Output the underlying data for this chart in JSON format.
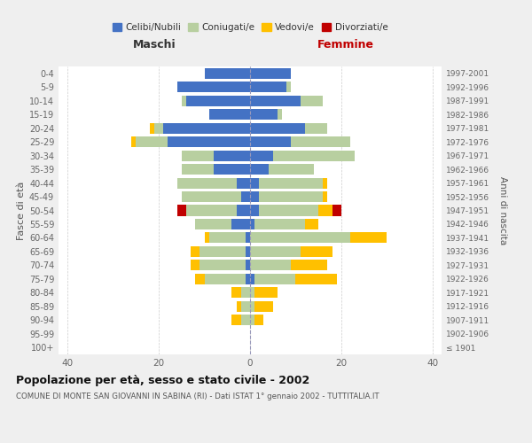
{
  "age_groups": [
    "100+",
    "95-99",
    "90-94",
    "85-89",
    "80-84",
    "75-79",
    "70-74",
    "65-69",
    "60-64",
    "55-59",
    "50-54",
    "45-49",
    "40-44",
    "35-39",
    "30-34",
    "25-29",
    "20-24",
    "15-19",
    "10-14",
    "5-9",
    "0-4"
  ],
  "birth_years": [
    "≤ 1901",
    "1902-1906",
    "1907-1911",
    "1912-1916",
    "1917-1921",
    "1922-1926",
    "1927-1931",
    "1932-1936",
    "1937-1941",
    "1942-1946",
    "1947-1951",
    "1952-1956",
    "1957-1961",
    "1962-1966",
    "1967-1971",
    "1972-1976",
    "1977-1981",
    "1982-1986",
    "1987-1991",
    "1992-1996",
    "1997-2001"
  ],
  "males": {
    "celibi": [
      0,
      0,
      0,
      0,
      0,
      1,
      1,
      1,
      1,
      4,
      3,
      2,
      3,
      8,
      8,
      18,
      19,
      9,
      14,
      16,
      10
    ],
    "coniugati": [
      0,
      0,
      2,
      2,
      2,
      9,
      10,
      10,
      8,
      8,
      11,
      13,
      13,
      7,
      7,
      7,
      2,
      0,
      1,
      0,
      0
    ],
    "vedovi": [
      0,
      0,
      2,
      1,
      2,
      2,
      2,
      2,
      1,
      0,
      0,
      0,
      0,
      0,
      0,
      1,
      1,
      0,
      0,
      0,
      0
    ],
    "divorziati": [
      0,
      0,
      0,
      0,
      0,
      0,
      0,
      0,
      0,
      0,
      2,
      0,
      0,
      0,
      0,
      0,
      0,
      0,
      0,
      0,
      0
    ]
  },
  "females": {
    "nubili": [
      0,
      0,
      0,
      0,
      0,
      1,
      0,
      0,
      0,
      1,
      2,
      2,
      2,
      4,
      5,
      9,
      12,
      6,
      11,
      8,
      9
    ],
    "coniugate": [
      0,
      0,
      1,
      1,
      1,
      9,
      9,
      11,
      22,
      11,
      13,
      14,
      14,
      10,
      18,
      13,
      5,
      1,
      5,
      1,
      0
    ],
    "vedove": [
      0,
      0,
      2,
      4,
      5,
      9,
      8,
      7,
      8,
      3,
      3,
      1,
      1,
      0,
      0,
      0,
      0,
      0,
      0,
      0,
      0
    ],
    "divorziate": [
      0,
      0,
      0,
      0,
      0,
      0,
      0,
      0,
      0,
      0,
      2,
      0,
      0,
      0,
      0,
      0,
      0,
      0,
      0,
      0,
      0
    ]
  },
  "colors": {
    "celibi": "#4472c4",
    "coniugati": "#b8cfa0",
    "vedovi": "#ffc000",
    "divorziati": "#c00000"
  },
  "xlim": 42,
  "title": "Popolazione per età, sesso e stato civile - 2002",
  "subtitle": "COMUNE DI MONTE SAN GIOVANNI IN SABINA (RI) - Dati ISTAT 1° gennaio 2002 - TUTTITALIA.IT",
  "ylabel_left": "Fasce di età",
  "ylabel_right": "Anni di nascita",
  "label_maschi": "Maschi",
  "label_femmine": "Femmine",
  "legend_labels": [
    "Celibi/Nubili",
    "Coniugati/e",
    "Vedovi/e",
    "Divorziati/e"
  ],
  "bg_color": "#efefef",
  "plot_bg": "#ffffff"
}
